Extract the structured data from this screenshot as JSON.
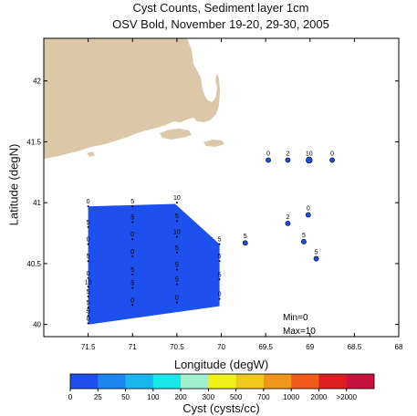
{
  "title": {
    "line1": "Cyst Counts, Sediment layer 1cm",
    "line2": "OSV Bold, November 19-20, 29-30, 2005"
  },
  "map": {
    "xlabel": "Longitude (degW)",
    "ylabel": "Latitude (degN)",
    "lon_range": [
      -72,
      -68
    ],
    "lat_range": [
      39.9,
      42.35
    ],
    "x_ticks": [
      {
        "v": -71.5,
        "label": "71.5"
      },
      {
        "v": -71,
        "label": "71"
      },
      {
        "v": -70.5,
        "label": "70.5"
      },
      {
        "v": -70,
        "label": "70"
      },
      {
        "v": -69.5,
        "label": "69.5"
      },
      {
        "v": -69,
        "label": "69"
      },
      {
        "v": -68.5,
        "label": "68.5"
      },
      {
        "v": -68,
        "label": "68"
      }
    ],
    "y_ticks": [
      {
        "v": 40,
        "label": "40"
      },
      {
        "v": 40.5,
        "label": "40.5"
      },
      {
        "v": 41,
        "label": "41"
      },
      {
        "v": 41.5,
        "label": "41.5"
      },
      {
        "v": 42,
        "label": "42"
      }
    ],
    "land_color": "#dcc8a8",
    "fill_color": "#1e50f0",
    "marker_color": "#1f4fd8",
    "min_label": "Min=0",
    "max_label": "Max=10"
  },
  "contour_region": [
    {
      "lon": -71.5,
      "lat": 40.97
    },
    {
      "lon": -70.52,
      "lat": 40.99
    },
    {
      "lon": -70.02,
      "lat": 40.66
    },
    {
      "lon": -70.02,
      "lat": 40.15
    },
    {
      "lon": -71.5,
      "lat": 40.0
    }
  ],
  "stations": [
    {
      "lon": -71.5,
      "lat": 40.97,
      "label": "0"
    },
    {
      "lon": -71.5,
      "lat": 40.8,
      "label": "5"
    },
    {
      "lon": -71.5,
      "lat": 40.66,
      "label": "0"
    },
    {
      "lon": -71.5,
      "lat": 40.52,
      "label": "5"
    },
    {
      "lon": -71.5,
      "lat": 40.38,
      "label": "0"
    },
    {
      "lon": -71.5,
      "lat": 40.31,
      "label": "10"
    },
    {
      "lon": -71.5,
      "lat": 40.23,
      "label": "5"
    },
    {
      "lon": -71.5,
      "lat": 40.14,
      "label": "5"
    },
    {
      "lon": -71.5,
      "lat": 40.07,
      "label": "5"
    },
    {
      "lon": -71.5,
      "lat": 40.01,
      "label": "0"
    },
    {
      "lon": -71.0,
      "lat": 40.97,
      "label": "5"
    },
    {
      "lon": -71.0,
      "lat": 40.84,
      "label": "5"
    },
    {
      "lon": -71.0,
      "lat": 40.7,
      "label": "0"
    },
    {
      "lon": -71.0,
      "lat": 40.56,
      "label": "0"
    },
    {
      "lon": -71.0,
      "lat": 40.41,
      "label": "5"
    },
    {
      "lon": -71.0,
      "lat": 40.3,
      "label": "5"
    },
    {
      "lon": -71.0,
      "lat": 40.16,
      "label": "0"
    },
    {
      "lon": -70.5,
      "lat": 41.0,
      "label": "10"
    },
    {
      "lon": -70.5,
      "lat": 40.85,
      "label": "5"
    },
    {
      "lon": -70.5,
      "lat": 40.72,
      "label": "10"
    },
    {
      "lon": -70.5,
      "lat": 40.59,
      "label": "5"
    },
    {
      "lon": -70.5,
      "lat": 40.45,
      "label": "5"
    },
    {
      "lon": -70.5,
      "lat": 40.33,
      "label": "5"
    },
    {
      "lon": -70.5,
      "lat": 40.18,
      "label": "0"
    },
    {
      "lon": -70.02,
      "lat": 40.66,
      "label": "5"
    },
    {
      "lon": -70.02,
      "lat": 40.52,
      "label": "5"
    },
    {
      "lon": -70.02,
      "lat": 40.37,
      "label": "5"
    },
    {
      "lon": -70.02,
      "lat": 40.21,
      "label": "0"
    },
    {
      "lon": -69.73,
      "lat": 40.67,
      "label": "5",
      "marker": true
    },
    {
      "lon": -69.47,
      "lat": 41.35,
      "label": "0",
      "marker": true
    },
    {
      "lon": -69.25,
      "lat": 41.35,
      "label": "2",
      "marker": true
    },
    {
      "lon": -69.01,
      "lat": 41.35,
      "label": "10",
      "marker": true,
      "large": true
    },
    {
      "lon": -68.75,
      "lat": 41.35,
      "label": "0",
      "marker": true
    },
    {
      "lon": -69.25,
      "lat": 40.83,
      "label": "2",
      "marker": true
    },
    {
      "lon": -69.02,
      "lat": 40.9,
      "label": "0",
      "marker": true
    },
    {
      "lon": -69.07,
      "lat": 40.68,
      "label": "5",
      "marker": true
    },
    {
      "lon": -68.93,
      "lat": 40.54,
      "label": "5",
      "marker": true
    }
  ],
  "colorbar": {
    "title": "Cyst (cysts/cc)",
    "colors": [
      "#1e50f0",
      "#1c86f0",
      "#1ab6f0",
      "#1ae8e8",
      "#a0f0d0",
      "#f0f01a",
      "#f0c81a",
      "#f0961a",
      "#f05a1a",
      "#dc1e1e",
      "#c8143c"
    ],
    "labels": [
      "0",
      "25",
      "50",
      "100",
      "200",
      "300",
      "500",
      "700",
      "1000",
      "2000",
      ">2000"
    ]
  }
}
